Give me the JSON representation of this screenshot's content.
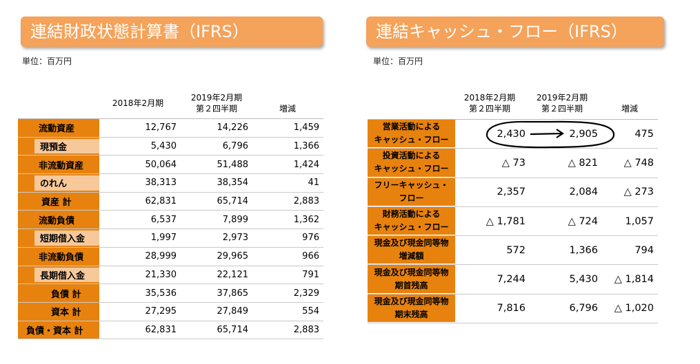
{
  "left": {
    "title": "連結財政状態計算書（IFRS）",
    "unit": "単位：百万円",
    "col1": "2018年2月期",
    "col2_line1": "2019年2月期",
    "col2_line2": "第２四半期",
    "col3": "増減",
    "rows": [
      {
        "label": "流動資産",
        "v1": "12,767",
        "v2": "14,226",
        "v3": "1,459"
      },
      {
        "label": "現預金",
        "v1": "5,430",
        "v2": "6,796",
        "v3": "1,366"
      },
      {
        "label": "非流動資産",
        "v1": "50,064",
        "v2": "51,488",
        "v3": "1,424"
      },
      {
        "label": "のれん",
        "v1": "38,313",
        "v2": "38,354",
        "v3": "41"
      },
      {
        "label": "資産 計",
        "v1": "62,831",
        "v2": "65,714",
        "v3": "2,883"
      },
      {
        "label": "流動負債",
        "v1": "6,537",
        "v2": "7,899",
        "v3": "1,362"
      },
      {
        "label": "短期借入金",
        "v1": "1,997",
        "v2": "2,973",
        "v3": "976"
      },
      {
        "label": "非流動負債",
        "v1": "28,999",
        "v2": "29,965",
        "v3": "966"
      },
      {
        "label": "長期借入金",
        "v1": "21,330",
        "v2": "22,121",
        "v3": "791"
      },
      {
        "label": "負債 計",
        "v1": "35,536",
        "v2": "37,865",
        "v3": "2,329"
      },
      {
        "label": "資本 計",
        "v1": "27,295",
        "v2": "27,849",
        "v3": "554"
      },
      {
        "label": "負債・資本 計",
        "v1": "62,831",
        "v2": "65,714",
        "v3": "2,883"
      }
    ]
  },
  "right": {
    "title": "連結キャッシュ・フロー（IFRS）",
    "unit": "単位：百万円",
    "col1_line1": "2018年2月期",
    "col1_line2": "第２四半期",
    "col2_line1": "2019年2月期",
    "col2_line2": "第２四半期",
    "col3": "増減",
    "rows": [
      {
        "label1": "営業活動による",
        "label2": "キャッシュ・フロー",
        "v1": "2,430",
        "v2": "2,905",
        "v3": "475"
      },
      {
        "label1": "投資活動による",
        "label2": "キャッシュ・フロー",
        "v1": "△ 73",
        "v2": "△ 821",
        "v3": "△ 748"
      },
      {
        "label1": "フリーキャッシュ・",
        "label2": "フロー",
        "v1": "2,357",
        "v2": "2,084",
        "v3": "△ 273"
      },
      {
        "label1": "財務活動による",
        "label2": "キャッシュ・フロー",
        "v1": "△ 1,781",
        "v2": "△ 724",
        "v3": "1,057"
      },
      {
        "label1": "現金及び現金同等物",
        "label2": "増減額",
        "v1": "572",
        "v2": "1,366",
        "v3": "794"
      },
      {
        "label1": "現金及び現金同等物",
        "label2": "期首残高",
        "v1": "7,244",
        "v2": "5,430",
        "v3": "△ 1,814"
      },
      {
        "label1": "現金及び現金同等物",
        "label2": "期末残高",
        "v1": "7,816",
        "v2": "6,796",
        "v3": "△ 1,020"
      }
    ]
  },
  "colors": {
    "banner": "#f5a25a",
    "label_bg": "#e8820e",
    "sub_label_bg": "#f7c89a"
  }
}
